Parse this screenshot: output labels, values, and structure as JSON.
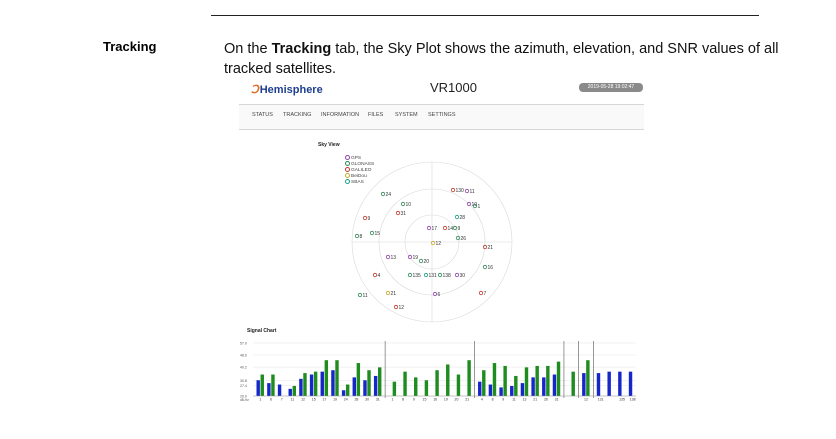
{
  "doc": {
    "side_heading": "Tracking",
    "para_prefix": "On the ",
    "para_bold": "Tracking",
    "para_suffix": " tab, the Sky Plot shows the azimuth, elevation, and SNR values of all tracked satellites."
  },
  "app": {
    "brand": "Hemisphere",
    "title": "VR1000",
    "timestamp": "2019-05-28 19:02:47",
    "nav": [
      "STATUS",
      "TRACKING",
      "INFORMATION",
      "FILES",
      "SYSTEM",
      "SETTINGS"
    ]
  },
  "sky": {
    "title": "Sky View",
    "legend": [
      {
        "label": "GPS",
        "color": "#8e44ad"
      },
      {
        "label": "GLONASS",
        "color": "#2e8b57"
      },
      {
        "label": "GALILEO",
        "color": "#c0392b"
      },
      {
        "label": "BeiDou",
        "color": "#c7a92c"
      },
      {
        "label": "SBAS",
        "color": "#16a085"
      }
    ],
    "satellites": [
      {
        "id": "130",
        "color": "#c0392b"
      },
      {
        "id": "11",
        "color": "#8e44ad"
      },
      {
        "id": "24",
        "color": "#2e8b57"
      },
      {
        "id": "10",
        "color": "#2e8b57"
      },
      {
        "id": "19",
        "color": "#8e44ad"
      },
      {
        "id": "1",
        "color": "#2e8b57"
      },
      {
        "id": "31",
        "color": "#c0392b"
      },
      {
        "id": "28",
        "color": "#16a085"
      },
      {
        "id": "9",
        "color": "#c0392b"
      },
      {
        "id": "17",
        "color": "#8e44ad"
      },
      {
        "id": "14",
        "color": "#c0392b"
      },
      {
        "id": "9",
        "color": "#2e8b57"
      },
      {
        "id": "15",
        "color": "#2e8b57"
      },
      {
        "id": "8",
        "color": "#2e8b57"
      },
      {
        "id": "26",
        "color": "#2e8b57"
      },
      {
        "id": "12",
        "color": "#c7a92c"
      },
      {
        "id": "21",
        "color": "#c0392b"
      },
      {
        "id": "13",
        "color": "#8e44ad"
      },
      {
        "id": "19",
        "color": "#8e44ad"
      },
      {
        "id": "20",
        "color": "#2e8b57"
      },
      {
        "id": "16",
        "color": "#2e8b57"
      },
      {
        "id": "4",
        "color": "#c0392b"
      },
      {
        "id": "135",
        "color": "#2e8b57"
      },
      {
        "id": "131",
        "color": "#16a085"
      },
      {
        "id": "138",
        "color": "#2e8b57"
      },
      {
        "id": "30",
        "color": "#8e44ad"
      },
      {
        "id": "11",
        "color": "#2e8b57"
      },
      {
        "id": "21",
        "color": "#c7a92c"
      },
      {
        "id": "6",
        "color": "#8e44ad"
      },
      {
        "id": "7",
        "color": "#c0392b"
      },
      {
        "id": "12",
        "color": "#c0392b"
      }
    ]
  },
  "signal": {
    "title": "Signal Chart",
    "y_ticks": [
      "57.0",
      "48.6",
      "40.2",
      "30.8",
      "27.4",
      "20.0"
    ],
    "units": "dB-Hz",
    "groups": [
      {
        "bars": [
          {
            "label": "1",
            "blue": 31,
            "green": 35
          },
          {
            "label": "6",
            "blue": 29,
            "green": 35
          },
          {
            "label": "7",
            "blue": 28,
            "green": 0
          },
          {
            "label": "11",
            "blue": 25,
            "green": 27
          },
          {
            "label": "12",
            "blue": 32,
            "green": 36
          },
          {
            "label": "15",
            "blue": 35,
            "green": 37
          },
          {
            "label": "17",
            "blue": 37,
            "green": 45
          },
          {
            "label": "19",
            "blue": 38,
            "green": 45
          },
          {
            "label": "24",
            "blue": 24,
            "green": 28
          },
          {
            "label": "28",
            "blue": 33,
            "green": 43
          },
          {
            "label": "30",
            "blue": 31,
            "green": 38
          },
          {
            "label": "31",
            "blue": 34,
            "green": 40
          }
        ]
      },
      {
        "bars": [
          {
            "label": "1",
            "blue": 0,
            "green": 30
          },
          {
            "label": "8",
            "blue": 0,
            "green": 37
          },
          {
            "label": "9",
            "blue": 0,
            "green": 33
          },
          {
            "label": "15",
            "blue": 0,
            "green": 31
          },
          {
            "label": "16",
            "blue": 0,
            "green": 38
          },
          {
            "label": "19",
            "blue": 0,
            "green": 42
          },
          {
            "label": "20",
            "blue": 0,
            "green": 35
          },
          {
            "label": "21",
            "blue": 0,
            "green": 45
          }
        ]
      },
      {
        "bars": [
          {
            "label": "4",
            "blue": 30,
            "green": 38
          },
          {
            "label": "8",
            "blue": 28,
            "green": 43
          },
          {
            "label": "9",
            "blue": 26,
            "green": 41
          },
          {
            "label": "11",
            "blue": 27,
            "green": 34
          },
          {
            "label": "13",
            "blue": 29,
            "green": 40
          },
          {
            "label": "21",
            "blue": 33,
            "green": 41
          },
          {
            "label": "26",
            "blue": 33,
            "green": 41
          },
          {
            "label": "31",
            "blue": 35,
            "green": 44
          }
        ]
      },
      {
        "bars": [
          {
            "label": "",
            "blue": 0,
            "green": 37
          }
        ]
      },
      {
        "bars": [
          {
            "label": "12",
            "blue": 36,
            "green": 45
          }
        ]
      },
      {
        "bars": [
          {
            "label": "131",
            "blue": 36,
            "green": 0
          },
          {
            "label": "",
            "blue": 37,
            "green": 0
          },
          {
            "label": "135",
            "blue": 37,
            "green": 0
          },
          {
            "label": "138",
            "blue": 37,
            "green": 0
          }
        ]
      }
    ],
    "colors": {
      "primary": "#1627c9",
      "secondary": "#1f8c1f"
    }
  }
}
